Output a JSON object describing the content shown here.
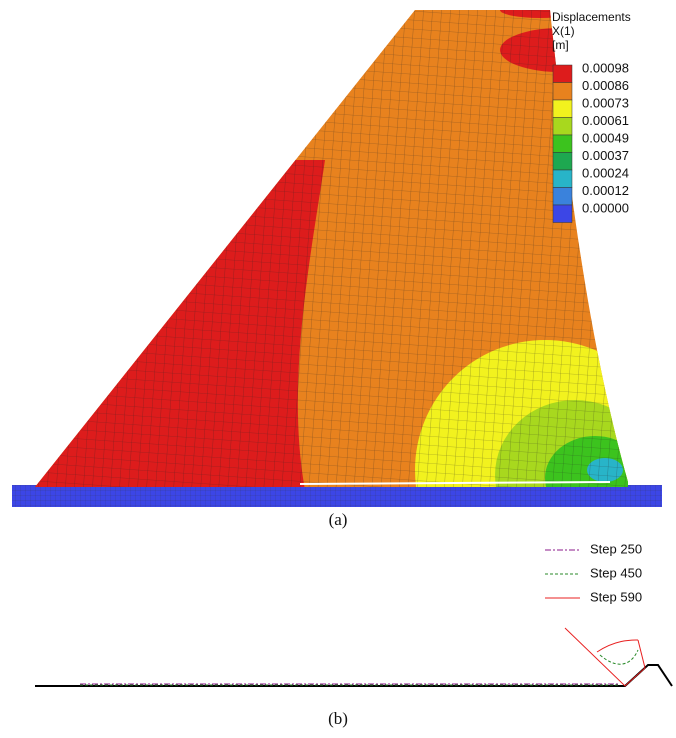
{
  "panel_a": {
    "legend": {
      "title_lines": [
        "Displacements",
        "X(1)",
        "[m]"
      ],
      "levels": [
        {
          "label": "0.00098",
          "color": "#dd1c1c"
        },
        {
          "label": "0.00086",
          "color": "#e8821e"
        },
        {
          "label": "0.00073",
          "color": "#f2f21e"
        },
        {
          "label": "0.00061",
          "color": "#a8d81e"
        },
        {
          "label": "0.00049",
          "color": "#3cc31e"
        },
        {
          "label": "0.00037",
          "color": "#1ea850"
        },
        {
          "label": "0.00024",
          "color": "#28b4c8"
        },
        {
          "label": "0.00012",
          "color": "#3a82dc"
        },
        {
          "label": "0.00000",
          "color": "#3c46e6"
        }
      ]
    },
    "caption": "(a)"
  },
  "panel_b": {
    "legend": [
      {
        "label": "Step 250",
        "color": "#8b1a8b",
        "dash": "6 2 2 2"
      },
      {
        "label": "Step 450",
        "color": "#2a8a2a",
        "dash": "3 2"
      },
      {
        "label": "Step 590",
        "color": "#e82020",
        "dash": ""
      }
    ],
    "caption": "(b)"
  }
}
